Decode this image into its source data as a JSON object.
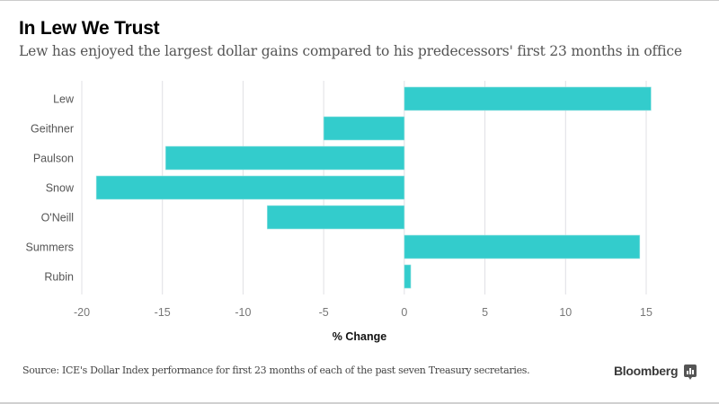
{
  "header": {
    "title": "In Lew We Trust",
    "subtitle": "Lew has enjoyed the largest dollar gains compared to his predecessors' first 23 months in office"
  },
  "footer": {
    "source": "Source: ICE's Dollar Index performance for first 23 months of each of the past seven Treasury secretaries.",
    "brand": "Bloomberg"
  },
  "colors": {
    "bar": "#33cccc",
    "grid": "#e0e0e4",
    "tick_text": "#777777",
    "label_text": "#555555"
  },
  "chart_data": {
    "type": "bar",
    "orientation": "horizontal",
    "title": "In Lew We Trust",
    "subtitle": "Lew has enjoyed the largest dollar gains compared to his predecessors' first 23 months in office",
    "categories": [
      "Lew",
      "Geithner",
      "Paulson",
      "Snow",
      "O'Neill",
      "Summers",
      "Rubin"
    ],
    "values": [
      15.3,
      -5.0,
      -14.8,
      -19.1,
      -8.5,
      14.6,
      0.4
    ],
    "xlabel": "% Change",
    "ylabel": "",
    "xlim": [
      -20,
      17
    ],
    "xticks": [
      -20,
      -15,
      -10,
      -5,
      0,
      5,
      10,
      15
    ],
    "xtick_labels": [
      "-20",
      "-15",
      "-10",
      "-5",
      "0",
      "5",
      "10",
      "15"
    ],
    "grid": true,
    "legend": "none"
  }
}
